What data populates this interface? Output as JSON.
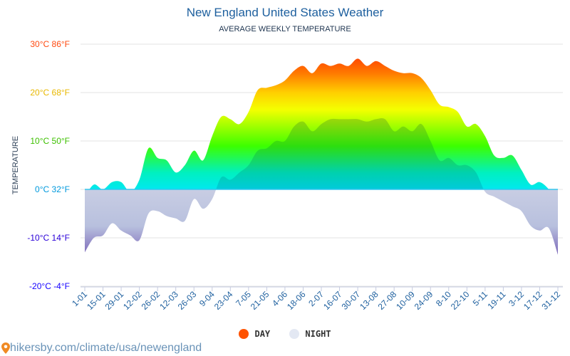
{
  "title": "New England United States Weather",
  "subtitle": "AVERAGE WEEKLY TEMPERATURE",
  "footer": "hikersby.com/climate/usa/newengland",
  "legend": [
    {
      "label": "DAY",
      "color": "#ff5200"
    },
    {
      "label": "NIGHT",
      "color": "#e3e8f3"
    }
  ],
  "chart_data": {
    "type": "area",
    "ylabel": "TEMPERATURE",
    "ylim": [
      -20,
      30
    ],
    "grid": true,
    "legend_position": "bottom",
    "yticks": [
      {
        "value": 30,
        "label": "30°C 86°F",
        "color": "#ff4a10"
      },
      {
        "value": 20,
        "label": "20°C 68°F",
        "color": "#e8b800"
      },
      {
        "value": 10,
        "label": "10°C 50°F",
        "color": "#3dc000"
      },
      {
        "value": 0,
        "label": "0°C 32°F",
        "color": "#0099dd"
      },
      {
        "value": -10,
        "label": "-10°C 14°F",
        "color": "#2a00d8"
      },
      {
        "value": -20,
        "label": "-20°C -4°F",
        "color": "#1400ff"
      }
    ],
    "xtick_labels": [
      "1-01",
      "15-01",
      "29-01",
      "12-02",
      "26-02",
      "12-03",
      "26-03",
      "9-04",
      "23-04",
      "7-05",
      "21-05",
      "4-06",
      "18-06",
      "2-07",
      "16-07",
      "30-07",
      "13-08",
      "27-08",
      "10-09",
      "24-09",
      "8-10",
      "22-10",
      "5-11",
      "19-11",
      "3-12",
      "17-12",
      "31-12"
    ],
    "series": [
      {
        "name": "DAY",
        "values": [
          -1.5,
          1,
          0,
          1.5,
          1.5,
          -0.5,
          2,
          8.5,
          6.5,
          6,
          3.5,
          5,
          8,
          6,
          11,
          15,
          14.5,
          13.5,
          16,
          20.5,
          21,
          21.5,
          22.5,
          24.5,
          25.5,
          24,
          26,
          25.5,
          26,
          25.5,
          27,
          25.5,
          26.5,
          25.5,
          24.5,
          24,
          24,
          23,
          20.5,
          17.5,
          17,
          16,
          13,
          13.5,
          11,
          7,
          6.5,
          7,
          4,
          1,
          1.5,
          0,
          -3
        ]
      },
      {
        "name": "NIGHT",
        "values": [
          -13,
          -10,
          -9.5,
          -7,
          -8.5,
          -9.5,
          -10.5,
          -5,
          -4.5,
          -5.5,
          -6,
          -6.5,
          -2,
          -4,
          -2,
          2.5,
          2,
          3.5,
          5,
          8,
          8.5,
          10,
          10,
          13,
          14,
          12,
          13.5,
          14.5,
          14.5,
          14.5,
          14.5,
          14,
          14.5,
          14.5,
          12,
          13,
          12,
          13.5,
          10,
          6,
          6.5,
          5,
          5,
          3.5,
          -0.5,
          -1.5,
          -2.5,
          -3.5,
          -4.5,
          -7.5,
          -8.5,
          -8,
          -13.5
        ]
      }
    ]
  }
}
